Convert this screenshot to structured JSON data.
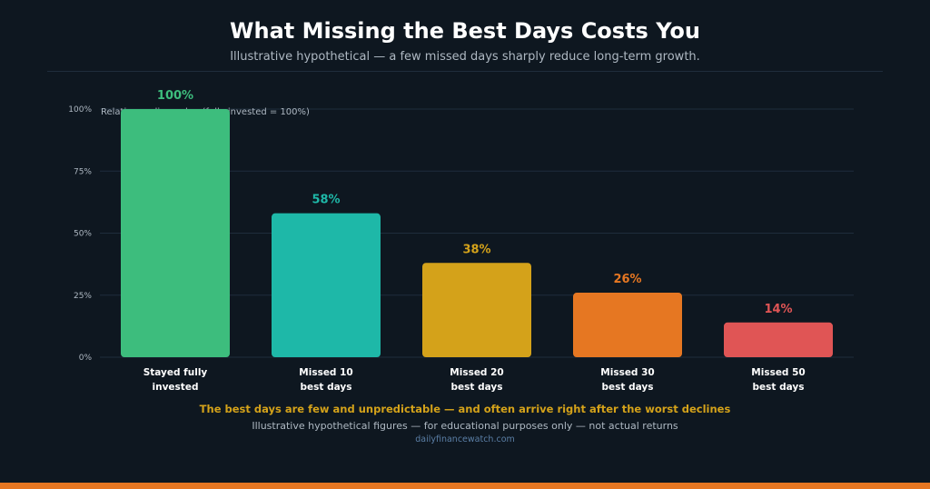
{
  "header": {
    "title": "What Missing the Best Days Costs You",
    "subtitle": "Illustrative hypothetical — a few missed days sharply reduce long-term growth."
  },
  "chart_data": {
    "type": "bar",
    "ylabel": "Relative ending value (fully invested = 100%)",
    "ylim": [
      0,
      100
    ],
    "yticks": [
      "0%",
      "25%",
      "50%",
      "75%",
      "100%"
    ],
    "grid": true,
    "categories": [
      [
        "Stayed fully",
        "invested"
      ],
      [
        "Missed 10",
        "best days"
      ],
      [
        "Missed 20",
        "best days"
      ],
      [
        "Missed 30",
        "best days"
      ],
      [
        "Missed 50",
        "best days"
      ]
    ],
    "values": [
      100,
      58,
      38,
      26,
      14
    ],
    "data_labels": [
      "100%",
      "58%",
      "38%",
      "26%",
      "14%"
    ],
    "colors": [
      "#3dbd7d",
      "#1eb8a8",
      "#d4a21a",
      "#e67722",
      "#e05555"
    ]
  },
  "footer": {
    "highlight": "The best days are few and unpredictable — and often arrive right after the worst declines",
    "note": "Illustrative hypothetical figures — for educational purposes only — not actual returns",
    "source": "dailyfinancewatch.com"
  },
  "theme": {
    "background": "#0e1720",
    "grid": "#1f2d3c",
    "tick_text": "#aeb8c2",
    "accent_bar": "#e67722"
  }
}
